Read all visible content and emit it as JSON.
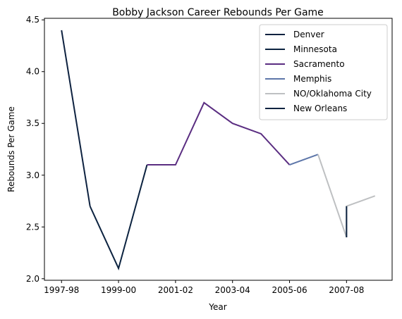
{
  "chart_data": {
    "type": "line",
    "title": "Bobby Jackson  Career Rebounds Per Game",
    "xlabel": "Year",
    "ylabel": "Rebounds Per Game",
    "x_tick_labels": [
      "1997-98",
      "1999-00",
      "2001-02",
      "2003-04",
      "2005-06",
      "2007-08"
    ],
    "x_tick_positions": [
      0,
      2,
      4,
      6,
      8,
      10
    ],
    "xlim": [
      -0.6,
      11.6
    ],
    "y_ticks": [
      2.0,
      2.5,
      3.0,
      3.5,
      4.0,
      4.5
    ],
    "y_tick_labels": [
      "2.0",
      "2.5",
      "3.0",
      "3.5",
      "4.0",
      "4.5"
    ],
    "ylim": [
      1.985,
      4.515
    ],
    "grid": false,
    "legend_position": "top-right",
    "series": [
      {
        "name": "Denver",
        "color": "#0E2240",
        "x": [
          0,
          1
        ],
        "y": [
          4.4,
          2.7
        ]
      },
      {
        "name": "Minnesota",
        "color": "#0C2340",
        "x": [
          1,
          2,
          3
        ],
        "y": [
          2.7,
          2.1,
          3.1
        ]
      },
      {
        "name": "Sacramento",
        "color": "#5A2D81",
        "x": [
          3,
          4,
          5,
          6,
          7,
          8
        ],
        "y": [
          3.1,
          3.1,
          3.7,
          3.5,
          3.4,
          3.1
        ]
      },
      {
        "name": "Memphis",
        "color": "#5D76A9",
        "x": [
          8,
          9
        ],
        "y": [
          3.1,
          3.2
        ]
      },
      {
        "name": "NO/Oklahoma City",
        "color": "#BEC0C2",
        "x": [
          9,
          10,
          10,
          11
        ],
        "y": [
          3.2,
          2.4,
          2.7,
          2.8
        ]
      },
      {
        "name": "New Orleans",
        "color": "#0C2340",
        "x": [
          10,
          10
        ],
        "y": [
          2.4,
          2.7
        ]
      }
    ]
  }
}
